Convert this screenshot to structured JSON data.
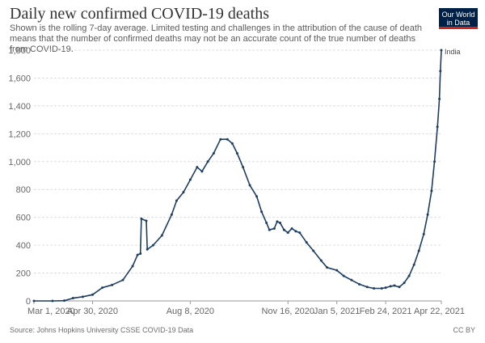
{
  "header": {
    "title": "Daily new confirmed COVID-19 deaths",
    "subtitle": "Shown is the rolling 7-day average. Limited testing and challenges in the attribution of the cause of death means that the number of confirmed deaths may not be an accurate count of the true number of deaths from COVID-19.",
    "logo_line1": "Our World",
    "logo_line2": "in Data"
  },
  "footer": {
    "source": "Source: Johns Hopkins University CSSE COVID-19 Data",
    "license": "CC BY"
  },
  "chart_data": {
    "type": "line",
    "ylim": [
      0,
      1800
    ],
    "y_ticks": [
      0,
      200,
      400,
      600,
      800,
      1000,
      1200,
      1400,
      1600,
      1800
    ],
    "y_tick_labels": [
      "0",
      "200",
      "400",
      "600",
      "800",
      "1,000",
      "1,200",
      "1,400",
      "1,600",
      "1,800"
    ],
    "x_range": [
      "2020-03-01",
      "2021-04-22"
    ],
    "x_ticks": [
      {
        "date": "2020-03-01",
        "label": "Mar 1, 2020"
      },
      {
        "date": "2020-04-30",
        "label": "Apr 30, 2020"
      },
      {
        "date": "2020-08-08",
        "label": "Aug 8, 2020"
      },
      {
        "date": "2020-11-16",
        "label": "Nov 16, 2020"
      },
      {
        "date": "2021-01-05",
        "label": "Jan 5, 2021"
      },
      {
        "date": "2021-02-24",
        "label": "Feb 24, 2021"
      },
      {
        "date": "2021-04-22",
        "label": "Apr 22, 2021"
      }
    ],
    "grid": true,
    "series": [
      {
        "name": "India",
        "color": "#1d3d63",
        "points": [
          [
            "2020-03-01",
            0
          ],
          [
            "2020-03-20",
            0
          ],
          [
            "2020-04-01",
            2
          ],
          [
            "2020-04-10",
            20
          ],
          [
            "2020-04-20",
            30
          ],
          [
            "2020-04-30",
            45
          ],
          [
            "2020-05-10",
            95
          ],
          [
            "2020-05-20",
            115
          ],
          [
            "2020-05-31",
            150
          ],
          [
            "2020-06-10",
            250
          ],
          [
            "2020-06-15",
            330
          ],
          [
            "2020-06-18",
            340
          ],
          [
            "2020-06-19",
            590
          ],
          [
            "2020-06-24",
            575
          ],
          [
            "2020-06-25",
            370
          ],
          [
            "2020-07-01",
            400
          ],
          [
            "2020-07-10",
            470
          ],
          [
            "2020-07-20",
            620
          ],
          [
            "2020-07-25",
            720
          ],
          [
            "2020-08-01",
            780
          ],
          [
            "2020-08-08",
            870
          ],
          [
            "2020-08-15",
            960
          ],
          [
            "2020-08-20",
            930
          ],
          [
            "2020-08-26",
            1000
          ],
          [
            "2020-09-01",
            1060
          ],
          [
            "2020-09-08",
            1160
          ],
          [
            "2020-09-15",
            1160
          ],
          [
            "2020-09-20",
            1130
          ],
          [
            "2020-09-25",
            1060
          ],
          [
            "2020-10-01",
            960
          ],
          [
            "2020-10-08",
            830
          ],
          [
            "2020-10-15",
            750
          ],
          [
            "2020-10-20",
            640
          ],
          [
            "2020-10-25",
            560
          ],
          [
            "2020-10-28",
            510
          ],
          [
            "2020-11-02",
            520
          ],
          [
            "2020-11-05",
            570
          ],
          [
            "2020-11-08",
            560
          ],
          [
            "2020-11-12",
            510
          ],
          [
            "2020-11-16",
            490
          ],
          [
            "2020-11-20",
            520
          ],
          [
            "2020-11-24",
            500
          ],
          [
            "2020-11-28",
            490
          ],
          [
            "2020-12-05",
            420
          ],
          [
            "2020-12-12",
            360
          ],
          [
            "2020-12-20",
            290
          ],
          [
            "2020-12-26",
            240
          ],
          [
            "2021-01-05",
            220
          ],
          [
            "2021-01-12",
            180
          ],
          [
            "2021-01-20",
            150
          ],
          [
            "2021-01-28",
            120
          ],
          [
            "2021-02-05",
            100
          ],
          [
            "2021-02-12",
            90
          ],
          [
            "2021-02-20",
            90
          ],
          [
            "2021-02-24",
            95
          ],
          [
            "2021-03-01",
            105
          ],
          [
            "2021-03-05",
            110
          ],
          [
            "2021-03-10",
            100
          ],
          [
            "2021-03-15",
            130
          ],
          [
            "2021-03-20",
            180
          ],
          [
            "2021-03-25",
            260
          ],
          [
            "2021-03-30",
            360
          ],
          [
            "2021-04-04",
            480
          ],
          [
            "2021-04-08",
            620
          ],
          [
            "2021-04-12",
            790
          ],
          [
            "2021-04-15",
            1000
          ],
          [
            "2021-04-18",
            1250
          ],
          [
            "2021-04-20",
            1450
          ],
          [
            "2021-04-21",
            1650
          ],
          [
            "2021-04-22",
            1800
          ]
        ]
      }
    ]
  }
}
